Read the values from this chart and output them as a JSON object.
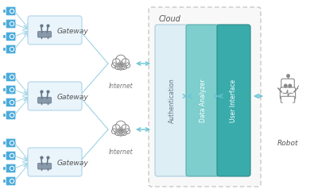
{
  "bg_color": "#ffffff",
  "fig_width": 4.0,
  "fig_height": 2.43,
  "dpi": 100,
  "camera_color": "#4aabdb",
  "camera_dark": "#2288bb",
  "gateway_box_color": "#eaf4fb",
  "gateway_box_edge": "#b0d4e8",
  "cloud_dashed_color": "#bbbbbb",
  "cloud_bg": "#f8f8f8",
  "auth_box_color": "#ddeef5",
  "auth_box_edge": "#aaccdd",
  "data_box_color": "#7ecece",
  "data_box_edge": "#5aabab",
  "ui_box_color": "#3aabab",
  "ui_box_edge": "#2d8888",
  "arrow_color": "#6bc4d4",
  "line_color": "#90cce0",
  "text_color": "#555555",
  "icon_gray": "#888888",
  "icon_dark": "#555566",
  "gateway_label": "Gateway",
  "cloud_label": "Cloud",
  "auth_label": "Authentication",
  "data_label": "Data Analyzer",
  "ui_label": "User Interface",
  "robot_label": "Robot",
  "internet_label": "Internet"
}
